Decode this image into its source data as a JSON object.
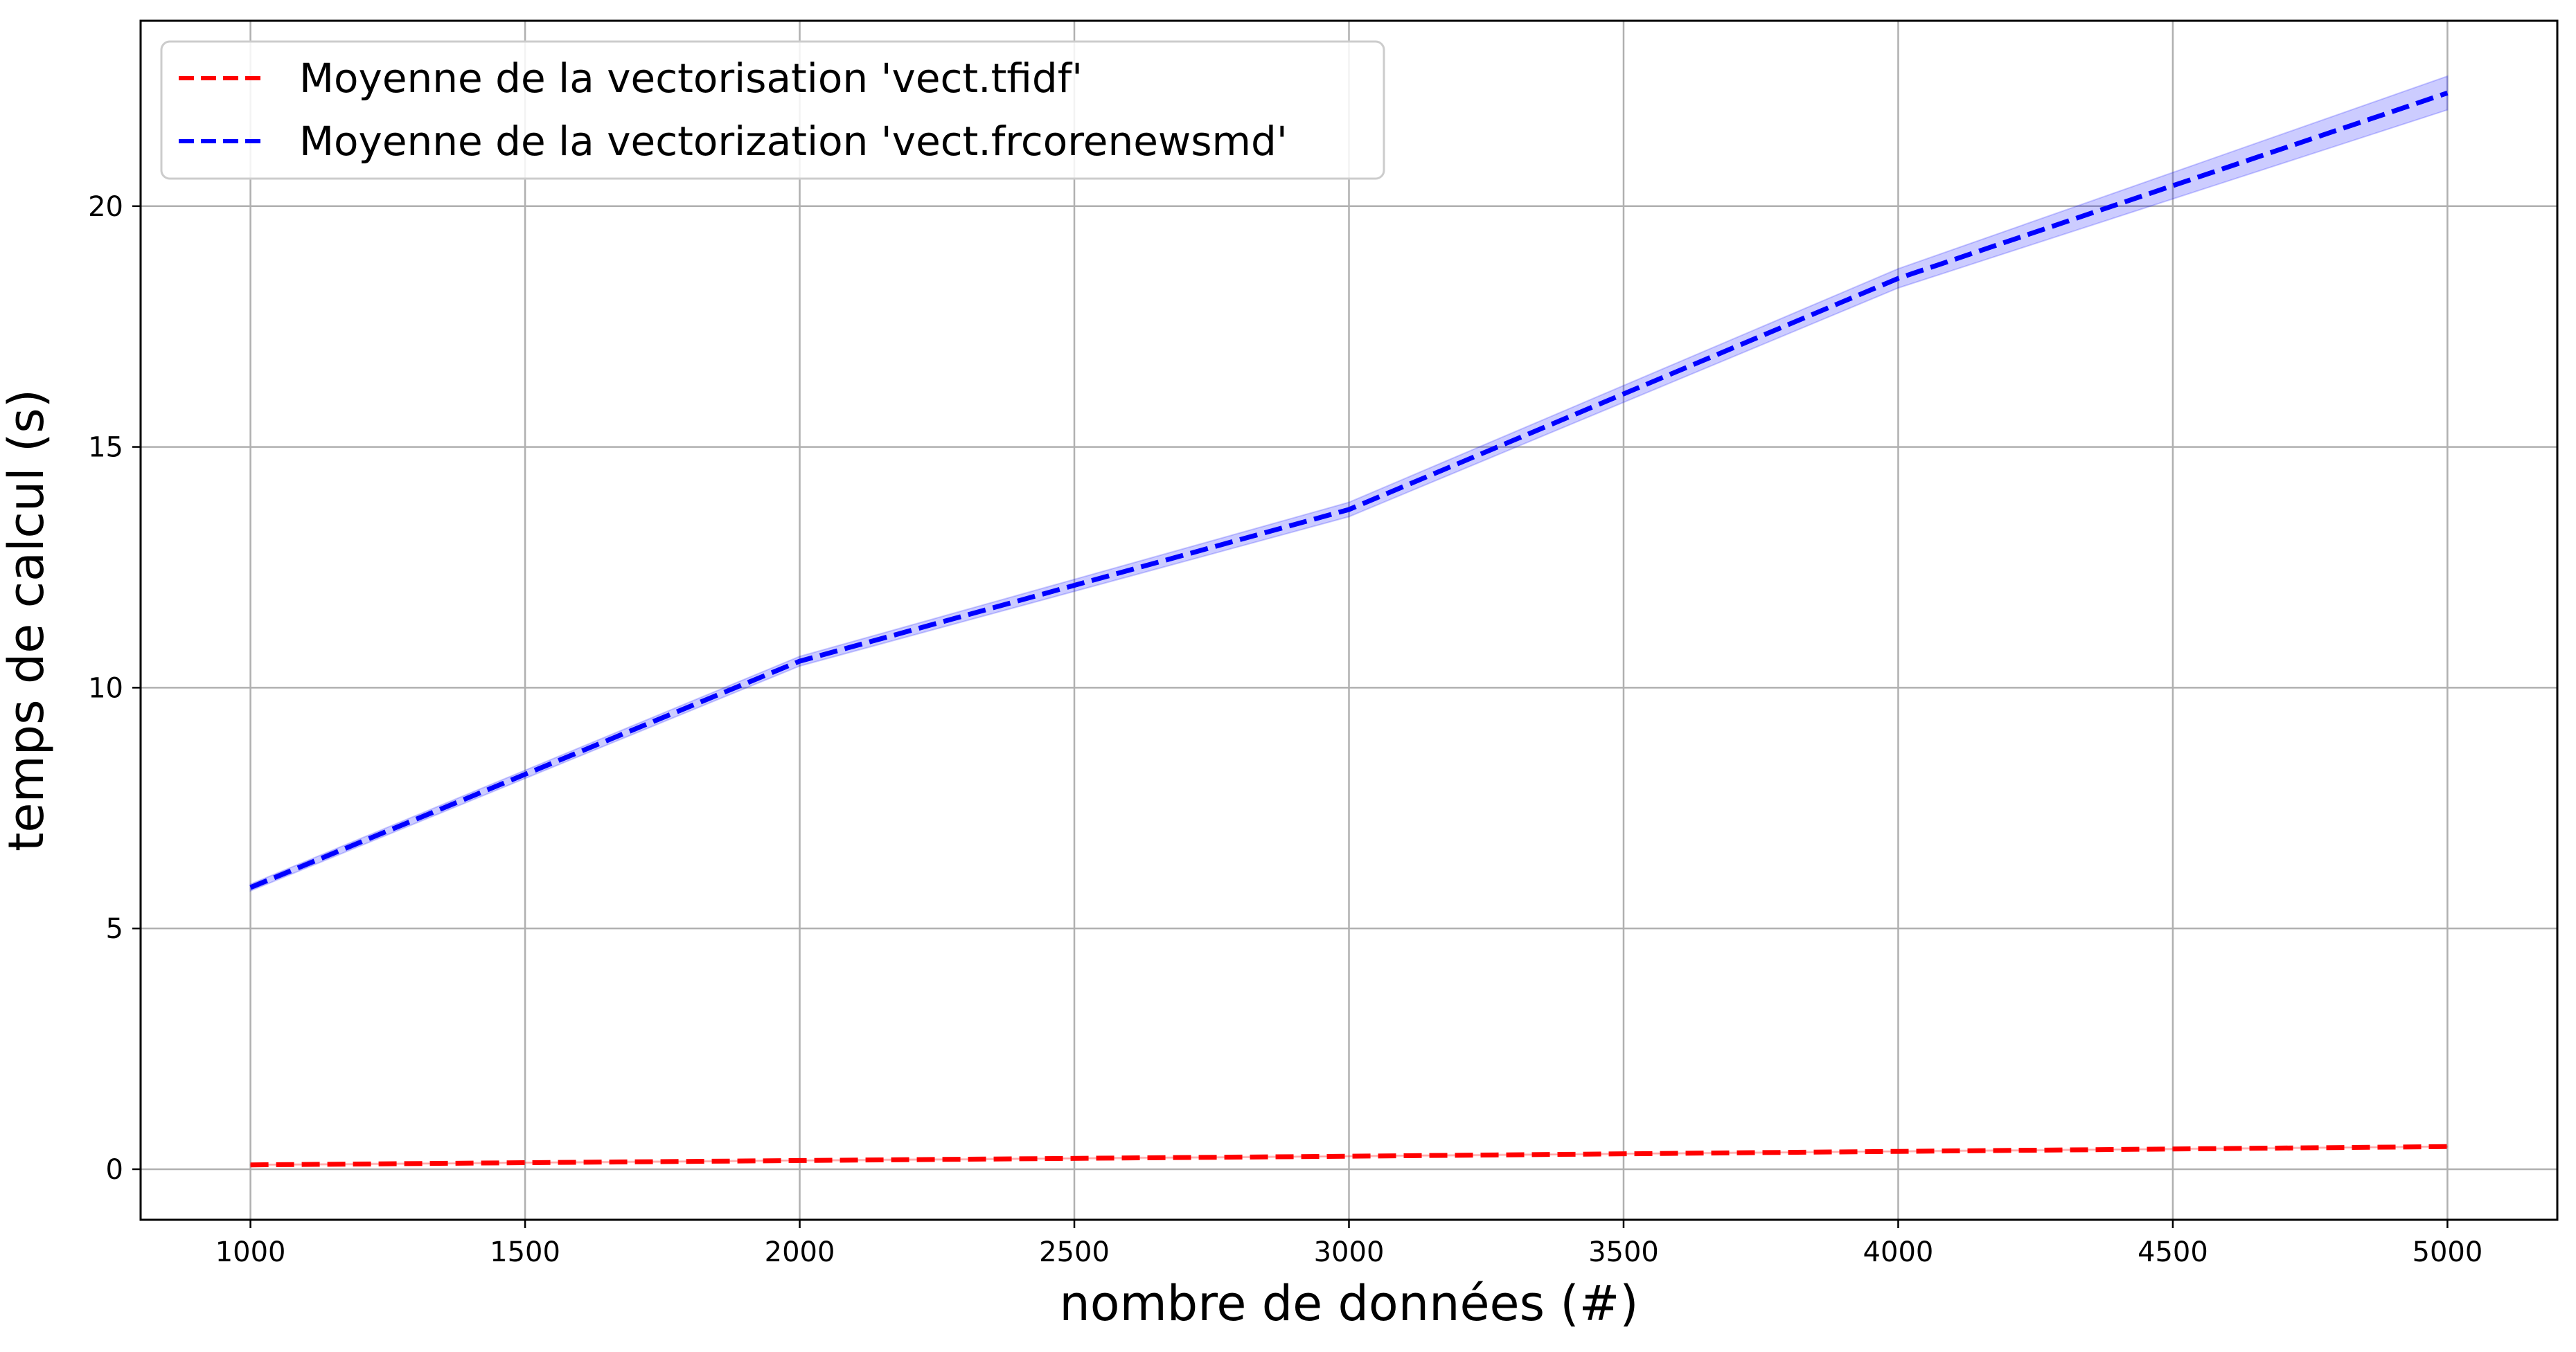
{
  "chart_data": {
    "type": "line",
    "title": "",
    "xlabel": "nombre de données (#)",
    "ylabel": "temps de calcul (s)",
    "xlim": [
      800,
      5200
    ],
    "ylim": [
      -1.05,
      23.85
    ],
    "x_ticks": [
      1000,
      1500,
      2000,
      2500,
      3000,
      3500,
      4000,
      4500,
      5000
    ],
    "y_ticks": [
      0,
      5,
      10,
      15,
      20
    ],
    "grid": true,
    "legend_position": "top-left",
    "x": [
      1000,
      2000,
      3000,
      4000,
      5000
    ],
    "series": [
      {
        "name": "Moyenne de la vectorisation 'vect.tfidf'",
        "color": "#ff0000",
        "line_style": "dashed",
        "values": [
          0.09,
          0.18,
          0.27,
          0.37,
          0.47
        ],
        "band_lower": [
          0.08,
          0.17,
          0.26,
          0.36,
          0.46
        ],
        "band_upper": [
          0.1,
          0.19,
          0.28,
          0.38,
          0.48
        ]
      },
      {
        "name": "Moyenne de la vectorization 'vect.frcorenewsmd'",
        "color": "#0000ff",
        "line_style": "dashed",
        "values": [
          5.85,
          10.55,
          13.7,
          18.5,
          22.35
        ],
        "band_lower": [
          5.78,
          10.45,
          13.55,
          18.3,
          22.0
        ],
        "band_upper": [
          5.92,
          10.65,
          13.85,
          18.7,
          22.7
        ]
      }
    ]
  }
}
